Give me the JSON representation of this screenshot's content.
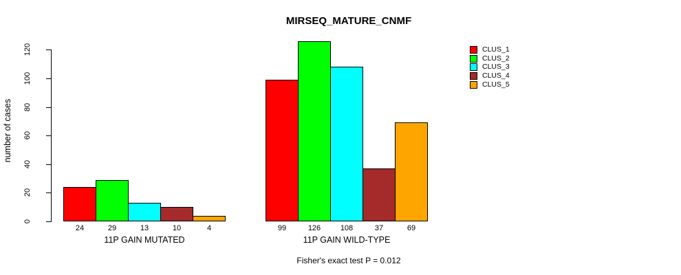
{
  "chart_data": {
    "type": "bar",
    "title": "MIRSEQ_MATURE_CNMF",
    "ylabel": "number of cases",
    "xlabel": "",
    "ylim": [
      0,
      126
    ],
    "yticks": [
      0,
      20,
      40,
      60,
      80,
      100,
      120
    ],
    "grid": false,
    "legend_position": "top-right",
    "categories": [
      "11P GAIN MUTATED",
      "11P GAIN WILD-TYPE"
    ],
    "series": [
      {
        "name": "CLUS_1",
        "color": "#FF0000",
        "values": [
          24,
          99
        ]
      },
      {
        "name": "CLUS_2",
        "color": "#00FF00",
        "values": [
          29,
          126
        ]
      },
      {
        "name": "CLUS_3",
        "color": "#00FFFF",
        "values": [
          13,
          108
        ]
      },
      {
        "name": "CLUS_4",
        "color": "#A52A2A",
        "values": [
          10,
          37
        ]
      },
      {
        "name": "CLUS_5",
        "color": "#FFA500",
        "values": [
          4,
          69
        ]
      }
    ],
    "bar_value_labels": [
      [
        "24",
        "29",
        "13",
        "10",
        "4"
      ],
      [
        "99",
        "126",
        "108",
        "37",
        "69"
      ]
    ],
    "annotation": "Fisher's exact test P = 0.012"
  }
}
